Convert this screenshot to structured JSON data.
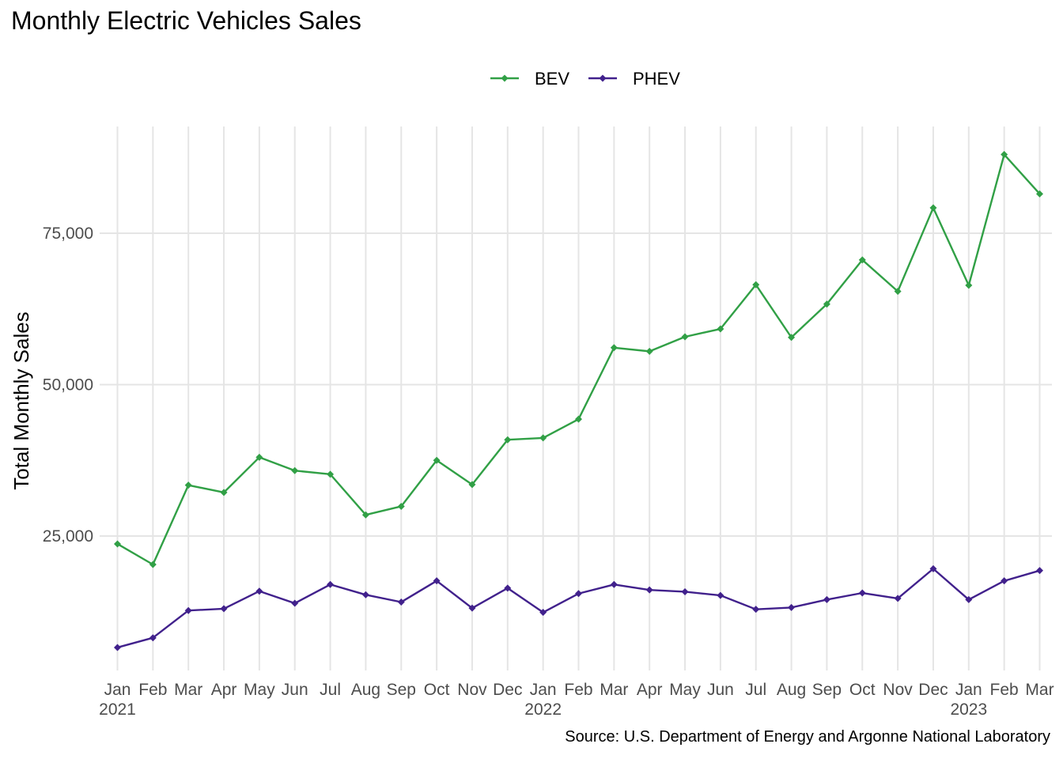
{
  "chart_data": {
    "type": "line",
    "title": "Monthly Electric Vehicles Sales",
    "ylabel": "Total Monthly Sales",
    "xlabel": "",
    "source": "Source: U.S. Department of Energy and Argonne National Laboratory",
    "ylim": [
      3000,
      91000
    ],
    "yticks": [
      25000,
      50000,
      75000
    ],
    "ytick_labels": [
      "25,000",
      "50,000",
      "75,000"
    ],
    "grid": true,
    "legend_position": "top",
    "x_month_labels": [
      "Jan",
      "Feb",
      "Mar",
      "Apr",
      "May",
      "Jun",
      "Jul",
      "Aug",
      "Sep",
      "Oct",
      "Nov",
      "Dec",
      "Jan",
      "Feb",
      "Mar",
      "Apr",
      "May",
      "Jun",
      "Jul",
      "Aug",
      "Sep",
      "Oct",
      "Nov",
      "Dec",
      "Jan",
      "Feb",
      "Mar"
    ],
    "x_year_labels": [
      "2021",
      "",
      "",
      "",
      "",
      "",
      "",
      "",
      "",
      "",
      "",
      "",
      "2022",
      "",
      "",
      "",
      "",
      "",
      "",
      "",
      "",
      "",
      "",
      "",
      "2023",
      "",
      ""
    ],
    "series": [
      {
        "name": "BEV",
        "color": "#31a046",
        "values": [
          23700,
          20300,
          33400,
          32200,
          38000,
          35800,
          35200,
          28500,
          29900,
          37500,
          33500,
          40900,
          41200,
          44300,
          56100,
          55500,
          57900,
          59200,
          66500,
          57800,
          63300,
          70600,
          65400,
          79200,
          66400,
          88000,
          81500
        ]
      },
      {
        "name": "PHEV",
        "color": "#41218c",
        "values": [
          6600,
          8200,
          12700,
          13000,
          15900,
          13900,
          17000,
          15300,
          14100,
          17600,
          13100,
          16400,
          12400,
          15500,
          17000,
          16100,
          15800,
          15200,
          12900,
          13200,
          14500,
          15600,
          14700,
          19600,
          14500,
          17600,
          19300
        ]
      }
    ]
  }
}
